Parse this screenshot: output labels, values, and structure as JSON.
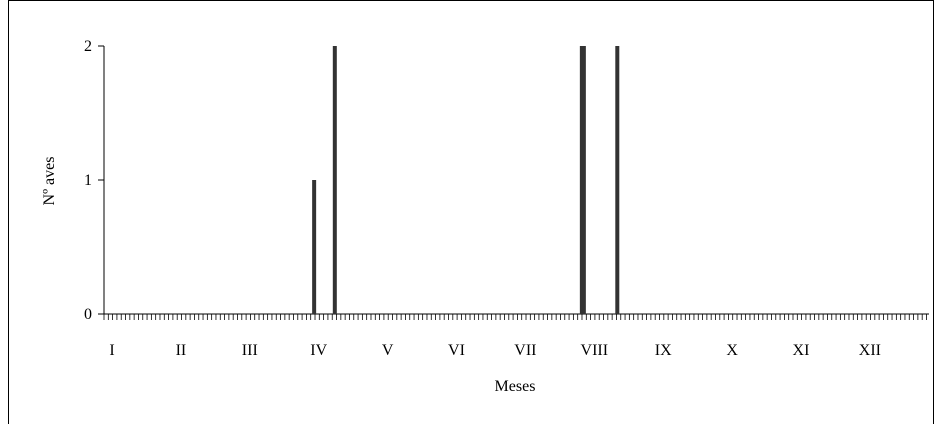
{
  "chart_data": {
    "type": "bar",
    "title": "",
    "xlabel": "Meses",
    "ylabel": "Nº aves",
    "ylim": [
      0,
      2
    ],
    "yticks": [
      "0",
      "1",
      "2"
    ],
    "month_labels": [
      "I",
      "II",
      "III",
      "IV",
      "V",
      "VI",
      "VII",
      "VIII",
      "IX",
      "X",
      "XI",
      "XII"
    ],
    "grid": false,
    "legend": "none",
    "bar_color": "#333333",
    "series": [
      {
        "x": [
          4.05,
          4.35,
          7.95,
          8.45
        ],
        "values": [
          1,
          2,
          2,
          2
        ]
      }
    ]
  }
}
